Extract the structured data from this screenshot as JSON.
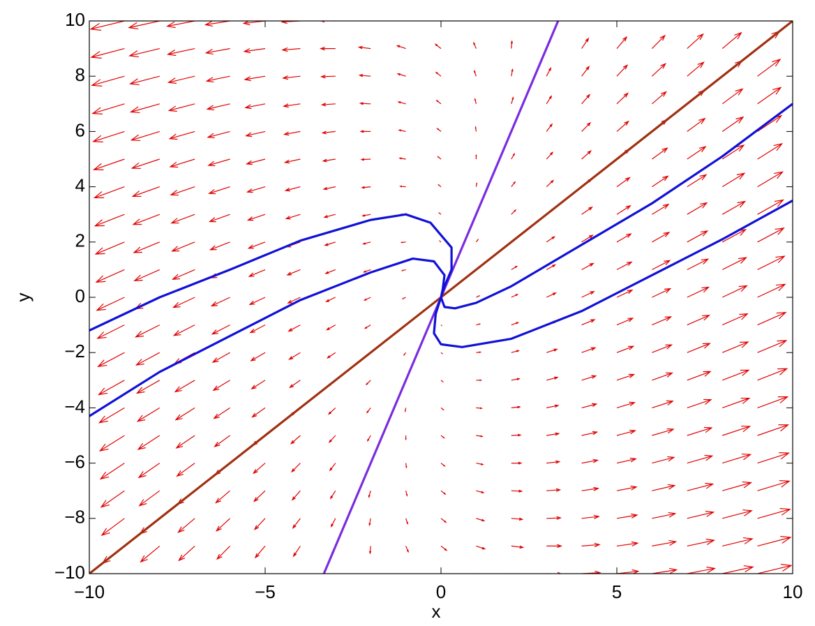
{
  "chart_data": {
    "type": "quiver",
    "xlabel": "x",
    "ylabel": "y",
    "xlim": [
      -10,
      10
    ],
    "ylim": [
      -10,
      10
    ],
    "xticks": [
      {
        "value": -10,
        "label": "−10"
      },
      {
        "value": -5,
        "label": "−5"
      },
      0,
      5,
      10
    ],
    "yticks": [
      {
        "value": -10,
        "label": "−10"
      },
      {
        "value": -8,
        "label": "−8"
      },
      {
        "value": -6,
        "label": "−6"
      },
      {
        "value": -4,
        "label": "−4"
      },
      {
        "value": -2,
        "label": "−2"
      },
      0,
      2,
      4,
      6,
      8,
      10
    ],
    "field": {
      "color": "#e00000",
      "matrix": [
        [
          2.5,
          -0.5
        ],
        [
          1.5,
          0.5
        ]
      ],
      "x": [
        -10,
        -9,
        -8,
        -7,
        -6,
        -5,
        -4,
        -3,
        -2,
        -1,
        0,
        1,
        2,
        3,
        4,
        5,
        6,
        7,
        8,
        9,
        10
      ],
      "y": [
        -10,
        -9,
        -8,
        -7,
        -6,
        -5,
        -4,
        -3,
        -2,
        -1,
        0,
        1,
        2,
        3,
        4,
        5,
        6,
        7,
        8,
        9,
        10
      ]
    },
    "series": [
      {
        "color": "#a03010",
        "x": [
          -10,
          10
        ],
        "y": [
          -10,
          10
        ]
      },
      {
        "color": "#7a2be0",
        "x": [
          -3.33,
          3.33
        ],
        "y": [
          -10,
          10
        ]
      },
      {
        "color": "#1010d8",
        "x": [
          -10,
          -8,
          -6,
          -4,
          -2,
          -1,
          -0.3,
          0.3,
          0.3,
          0.1,
          0
        ],
        "y": [
          -1.2,
          0,
          1,
          2.05,
          2.8,
          3.0,
          2.7,
          1.8,
          1,
          0.4,
          0
        ]
      },
      {
        "color": "#1010d8",
        "x": [
          -10,
          -8,
          -6,
          -4,
          -2,
          -0.8,
          -0.2,
          0.1,
          0.05,
          0
        ],
        "y": [
          -4.3,
          -2.7,
          -1.4,
          -0.1,
          0.9,
          1.4,
          1.3,
          0.8,
          0.3,
          0
        ]
      },
      {
        "color": "#1010d8",
        "x": [
          0,
          0.1,
          0.4,
          1,
          2,
          4,
          6,
          8,
          10
        ],
        "y": [
          0,
          -0.35,
          -0.4,
          -0.2,
          0.4,
          1.9,
          3.4,
          5.1,
          7.0
        ]
      },
      {
        "color": "#1010d8",
        "x": [
          0,
          -0.15,
          -0.2,
          0,
          0.6,
          2,
          4,
          6,
          8,
          10
        ],
        "y": [
          0,
          -0.6,
          -1.3,
          -1.7,
          -1.8,
          -1.5,
          -0.5,
          0.8,
          2.1,
          3.5
        ]
      }
    ]
  }
}
